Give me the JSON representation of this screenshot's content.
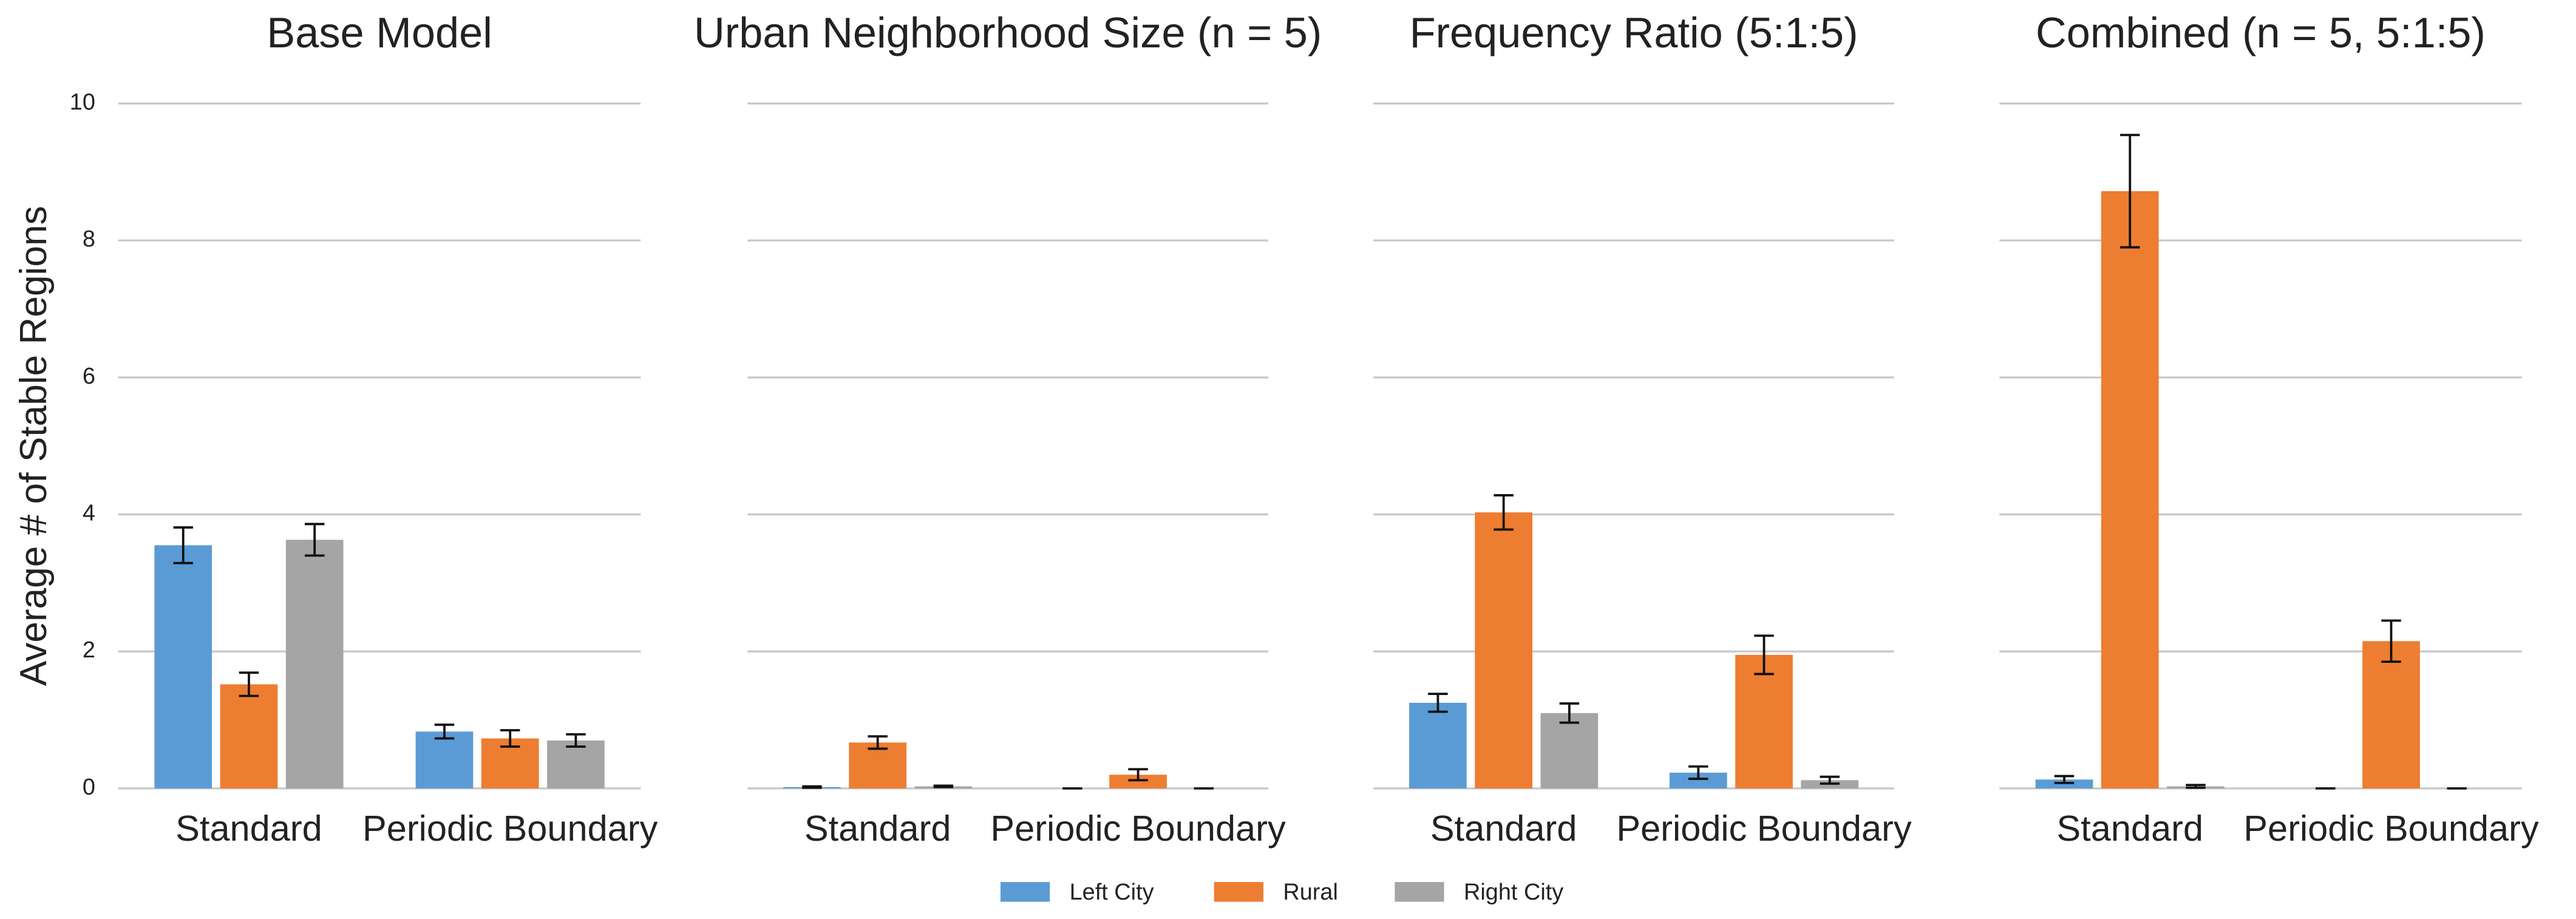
{
  "chart_data": [
    {
      "type": "bar",
      "title": "Base Model",
      "ylabel": "Average # of Stable Regions",
      "categories": [
        "Standard",
        "Periodic Boundary"
      ],
      "ylim": [
        0,
        10
      ],
      "yticks": [
        0,
        2,
        4,
        6,
        8,
        10
      ],
      "grid": true,
      "legend": "bottom",
      "series": [
        {
          "name": "Left City",
          "color": "#5b9bd5",
          "values": [
            3.55,
            0.83
          ],
          "errors": [
            0.26,
            0.1
          ]
        },
        {
          "name": "Rural",
          "color": "#ed7d31",
          "values": [
            1.52,
            0.73
          ],
          "errors": [
            0.17,
            0.12
          ]
        },
        {
          "name": "Right City",
          "color": "#a5a5a5",
          "values": [
            3.63,
            0.7
          ],
          "errors": [
            0.23,
            0.09
          ]
        }
      ]
    },
    {
      "type": "bar",
      "title": "Urban Neighborhood Size (n = 5)",
      "categories": [
        "Standard",
        "Periodic Boundary"
      ],
      "ylim": [
        0,
        10
      ],
      "yticks": [
        0,
        2,
        4,
        6,
        8,
        10
      ],
      "grid": true,
      "series": [
        {
          "values": [
            0.02,
            0
          ],
          "errors": [
            0.01,
            0
          ]
        },
        {
          "values": [
            0.67,
            0.2
          ],
          "errors": [
            0.09,
            0.08
          ]
        },
        {
          "values": [
            0.03,
            0
          ],
          "errors": [
            0.01,
            0
          ]
        }
      ]
    },
    {
      "type": "bar",
      "title": "Frequency Ratio (5:1:5)",
      "categories": [
        "Standard",
        "Periodic Boundary"
      ],
      "ylim": [
        0,
        10
      ],
      "yticks": [
        0,
        2,
        4,
        6,
        8,
        10
      ],
      "grid": true,
      "series": [
        {
          "values": [
            1.25,
            0.23
          ],
          "errors": [
            0.13,
            0.09
          ]
        },
        {
          "values": [
            4.03,
            1.95
          ],
          "errors": [
            0.25,
            0.28
          ]
        },
        {
          "values": [
            1.1,
            0.12
          ],
          "errors": [
            0.14,
            0.05
          ]
        }
      ]
    },
    {
      "type": "bar",
      "title": "Combined (n = 5, 5:1:5)",
      "categories": [
        "Standard",
        "Periodic Boundary"
      ],
      "ylim": [
        0,
        10
      ],
      "yticks": [
        0,
        2,
        4,
        6,
        8,
        10
      ],
      "grid": true,
      "series": [
        {
          "values": [
            0.13,
            0
          ],
          "errors": [
            0.05,
            0
          ]
        },
        {
          "values": [
            8.72,
            2.15
          ],
          "errors": [
            0.82,
            0.3
          ]
        },
        {
          "values": [
            0.03,
            0
          ],
          "errors": [
            0.02,
            0
          ]
        }
      ]
    }
  ]
}
